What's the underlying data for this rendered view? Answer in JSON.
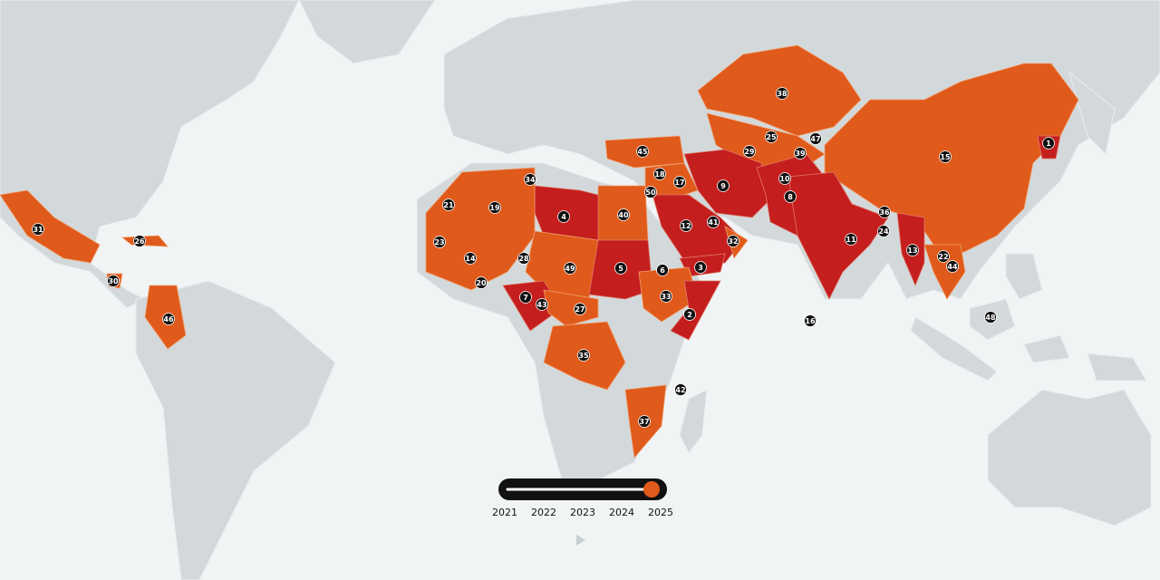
{
  "markers": [
    1,
    2,
    3,
    4,
    5,
    6,
    7,
    8,
    9,
    10,
    11,
    12,
    13,
    14,
    15,
    16,
    17,
    18,
    19,
    20,
    21,
    22,
    23,
    24,
    25,
    26,
    27,
    28,
    29,
    30,
    31,
    32,
    33,
    34,
    35,
    36,
    37,
    38,
    39,
    40,
    41,
    42,
    43,
    44,
    45,
    46,
    47,
    48,
    49,
    50
  ],
  "timeline": {
    "years": [
      "2021",
      "2022",
      "2023",
      "2024",
      "2025"
    ]
  }
}
